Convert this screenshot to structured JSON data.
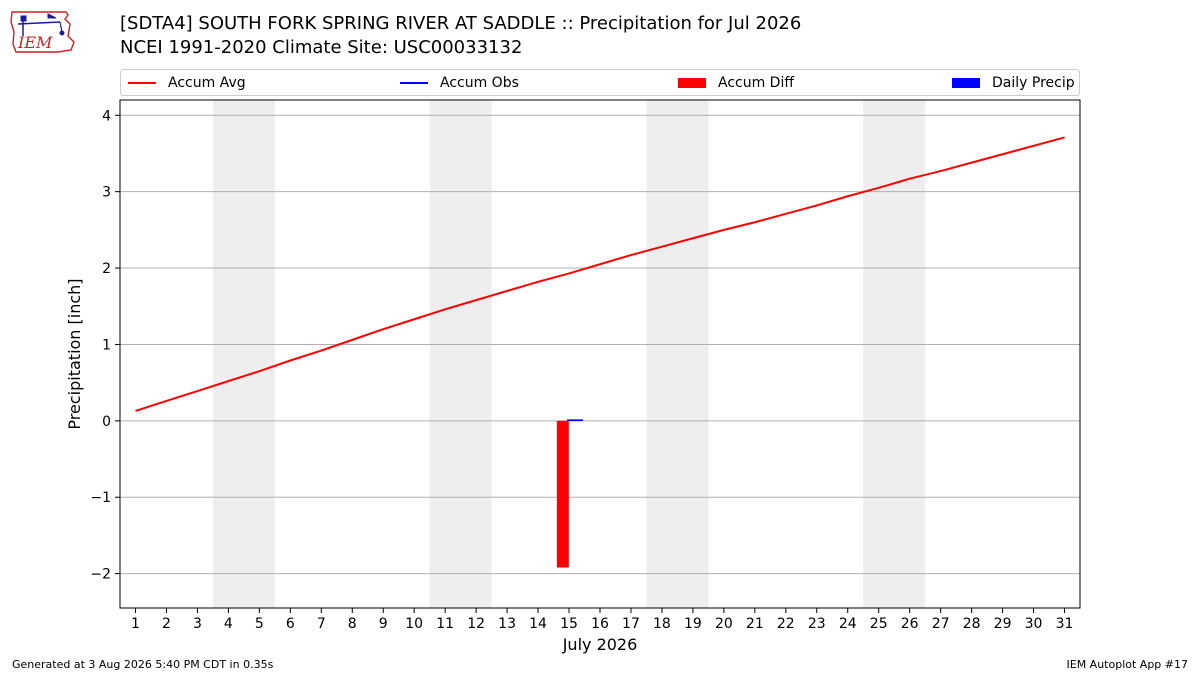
{
  "header": {
    "title_line1": "[SDTA4] SOUTH FORK SPRING RIVER AT SADDLE :: Precipitation for Jul 2026",
    "title_line2": "NCEI 1991-2020 Climate Site: USC00033132",
    "logo_text": "IEM"
  },
  "footer": {
    "generated": "Generated at 3 Aug 2026 5:40 PM CDT in 0.35s",
    "app": "IEM Autoplot App #17"
  },
  "colors": {
    "avg": "#ff0000",
    "obs": "#0000ff",
    "diff": "#ff0000",
    "daily": "#0000ff",
    "weekend": "#eeeeee",
    "grid": "#b0b0b0",
    "logo": "#cc2222",
    "logo_icon": "#1a1aa0"
  },
  "legend": [
    {
      "label": "Accum Avg",
      "kind": "line",
      "color": "#ff0000"
    },
    {
      "label": "Accum Obs",
      "kind": "line",
      "color": "#0000ff"
    },
    {
      "label": "Accum Diff",
      "kind": "box",
      "color": "#ff0000"
    },
    {
      "label": "Daily Precip",
      "kind": "box",
      "color": "#0000ff"
    }
  ],
  "chart_data": {
    "type": "line",
    "xlabel": "July 2026",
    "ylabel": "Precipitation [inch]",
    "ylim": [
      -2.45,
      4.2
    ],
    "xlim": [
      0.5,
      31.5
    ],
    "yticks": [
      -2,
      -1,
      0,
      1,
      2,
      3,
      4
    ],
    "ytick_labels": [
      "−2",
      "−1",
      "0",
      "1",
      "2",
      "3",
      "4"
    ],
    "x": [
      1,
      2,
      3,
      4,
      5,
      6,
      7,
      8,
      9,
      10,
      11,
      12,
      13,
      14,
      15,
      16,
      17,
      18,
      19,
      20,
      21,
      22,
      23,
      24,
      25,
      26,
      27,
      28,
      29,
      30,
      31
    ],
    "xtick_labels": [
      "1",
      "2",
      "3",
      "4",
      "5",
      "6",
      "7",
      "8",
      "9",
      "10",
      "11",
      "12",
      "13",
      "14",
      "15",
      "16",
      "17",
      "18",
      "19",
      "20",
      "21",
      "22",
      "23",
      "24",
      "25",
      "26",
      "27",
      "28",
      "29",
      "30",
      "31"
    ],
    "grid": "horizontal",
    "weekend_bands": [
      [
        3.5,
        5.5
      ],
      [
        10.5,
        12.5
      ],
      [
        17.5,
        19.5
      ],
      [
        24.5,
        26.5
      ]
    ],
    "series": [
      {
        "name": "Accum Avg",
        "kind": "line",
        "values": [
          0.13,
          0.26,
          0.39,
          0.52,
          0.65,
          0.79,
          0.92,
          1.06,
          1.2,
          1.33,
          1.46,
          1.58,
          1.7,
          1.82,
          1.93,
          2.05,
          2.17,
          2.28,
          2.39,
          2.5,
          2.6,
          2.71,
          2.82,
          2.94,
          3.05,
          3.17,
          3.27,
          3.38,
          3.49,
          3.6,
          3.71
        ]
      },
      {
        "name": "Accum Obs",
        "kind": "line",
        "x": [
          15
        ],
        "values": [
          0.01
        ]
      },
      {
        "name": "Accum Diff",
        "kind": "bar",
        "x": [
          14.8
        ],
        "values": [
          -1.92
        ]
      },
      {
        "name": "Daily Precip",
        "kind": "bar",
        "x": [
          15.2
        ],
        "values": [
          0.01
        ]
      }
    ]
  }
}
